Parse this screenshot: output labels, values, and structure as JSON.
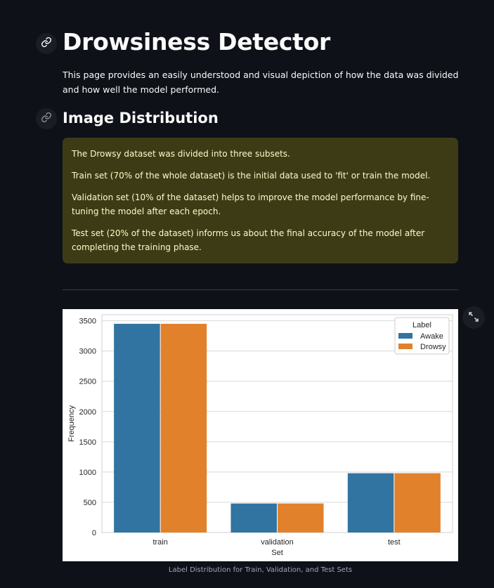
{
  "page": {
    "title": "Drowsiness Detector",
    "intro": "This page provides an easily understood and visual depiction of how the data was divided and how well the model performed.",
    "section_title": "Image Distribution",
    "callout": [
      "The Drowsy dataset was divided into three subsets.",
      "Train set (70% of the whole dataset) is the initial data used to 'fit' or train the model.",
      "Validation set (10% of the dataset) helps to improve the model performance by fine-tuning the model after each epoch.",
      "Test set (20% of the dataset) informs us about the final accuracy of the model after completing the training phase."
    ],
    "figure_caption": "Label Distribution for Train, Validation, and Test Sets"
  },
  "icons": {
    "anchor": "link-icon",
    "expand": "fullscreen-expand-icon"
  },
  "colors": {
    "background": "#0e1117",
    "callout_bg": "#3d3b16",
    "callout_text": "#fdfbc8"
  },
  "chart_data": {
    "type": "bar",
    "categories": [
      "train",
      "validation",
      "test"
    ],
    "series": [
      {
        "name": "Awake",
        "values": [
          3450,
          480,
          980
        ],
        "color": "#3274a1"
      },
      {
        "name": "Drowsy",
        "values": [
          3450,
          480,
          980
        ],
        "color": "#e1812c"
      }
    ],
    "xlabel": "Set",
    "ylabel": "Frequency",
    "ylim": [
      0,
      3600
    ],
    "yticks": [
      0,
      500,
      1000,
      1500,
      2000,
      2500,
      3000,
      3500
    ],
    "legend_title": "Label",
    "legend_position": "top-right",
    "grid": true
  }
}
